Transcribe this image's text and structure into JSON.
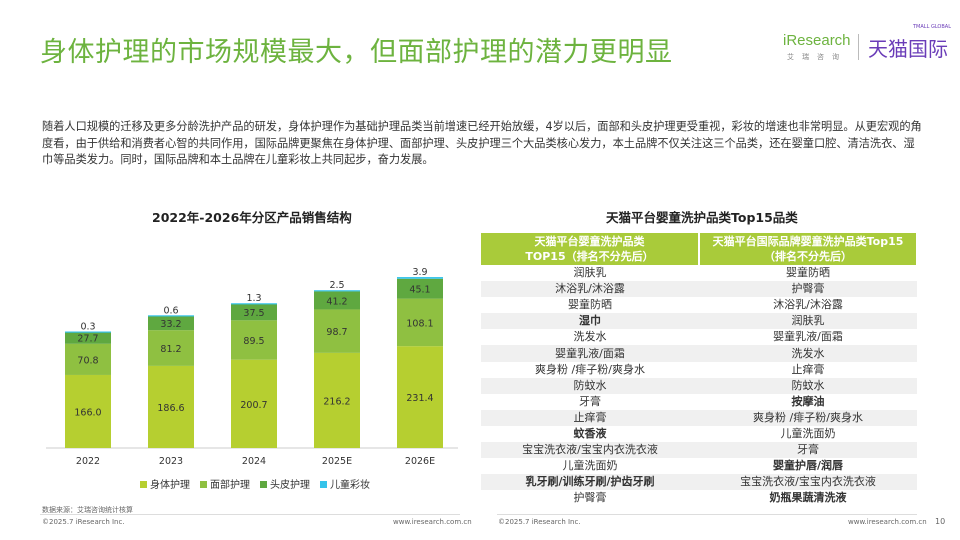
{
  "title": "身体护理的市场规模最大，但面部护理的潜力更明显",
  "logo": {
    "iresearch": "iResearch",
    "iresearch_cn": "艾瑞咨询",
    "tmall": "天猫国际",
    "tmall_en": "TMALL GLOBAL"
  },
  "paragraph": "随着人口规模的迁移及更多分龄洗护产品的研发，身体护理作为基础护理品类当前增速已经开始放缓，4岁以后，面部和头皮护理更受重视，彩妆的增速也非常明显。从更宏观的角度看，由于供给和消费者心智的共同作用，国际品牌更聚焦在身体护理、面部护理、头皮护理三个大品类核心发力，本土品牌不仅关注这三个品类，还在婴童口腔、清洁洗衣、湿巾等品类发力。同时，国际品牌和本土品牌在儿童彩妆上共同起步，奋力发展。",
  "chart_data": {
    "type": "bar",
    "stacked": true,
    "title": "2022年-2026年分区产品销售结构",
    "categories": [
      "2022",
      "2023",
      "2024",
      "2025E",
      "2026E"
    ],
    "series": [
      {
        "name": "身体护理",
        "color": "#b6cf30",
        "values": [
          166.0,
          186.6,
          200.7,
          216.2,
          231.4
        ]
      },
      {
        "name": "面部护理",
        "color": "#8fc041",
        "values": [
          70.8,
          81.2,
          89.5,
          98.7,
          108.1
        ]
      },
      {
        "name": "头皮护理",
        "color": "#5fa840",
        "values": [
          27.7,
          33.2,
          37.5,
          41.2,
          45.1
        ]
      },
      {
        "name": "儿童彩妆",
        "color": "#35c3ea",
        "values": [
          0.3,
          0.6,
          1.3,
          2.5,
          3.9
        ]
      }
    ],
    "legend": "bottom",
    "grid": false
  },
  "source": "数据来源：艾瑞咨询统计核算",
  "table": {
    "title": "天猫平台婴童洗护品类Top15品类",
    "headers": [
      [
        "天猫平台婴童洗护品类",
        "TOP15（排名不分先后）"
      ],
      [
        "天猫平台国际品牌婴童洗护品类Top15",
        "（排名不分先后）"
      ]
    ],
    "rows": [
      [
        {
          "t": "润肤乳"
        },
        {
          "t": "婴童防晒"
        }
      ],
      [
        {
          "t": "沐浴乳/沐浴露"
        },
        {
          "t": "护臀膏"
        }
      ],
      [
        {
          "t": "婴童防晒"
        },
        {
          "t": "沐浴乳/沐浴露"
        }
      ],
      [
        {
          "t": "湿巾",
          "bold": true
        },
        {
          "t": "润肤乳"
        }
      ],
      [
        {
          "t": "洗发水"
        },
        {
          "t": "婴童乳液/面霜"
        }
      ],
      [
        {
          "t": "婴童乳液/面霜"
        },
        {
          "t": "洗发水"
        }
      ],
      [
        {
          "t": "爽身粉 /痱子粉/爽身水"
        },
        {
          "t": "止痒膏"
        }
      ],
      [
        {
          "t": "防蚊水"
        },
        {
          "t": "防蚊水"
        }
      ],
      [
        {
          "t": "牙膏"
        },
        {
          "t": "按摩油",
          "bold": true
        }
      ],
      [
        {
          "t": "止痒膏"
        },
        {
          "t": "爽身粉 /痱子粉/爽身水"
        }
      ],
      [
        {
          "t": "蚊香液",
          "bold": true
        },
        {
          "t": "儿童洗面奶"
        }
      ],
      [
        {
          "t": "宝宝洗衣液/宝宝内衣洗衣液"
        },
        {
          "t": "牙膏"
        }
      ],
      [
        {
          "t": "儿童洗面奶"
        },
        {
          "t": "婴童护唇/润唇",
          "bold": true
        }
      ],
      [
        {
          "t": "乳牙刷/训练牙刷/护齿牙刷",
          "bold": true
        },
        {
          "t": "宝宝洗衣液/宝宝内衣洗衣液"
        }
      ],
      [
        {
          "t": "护臀膏"
        },
        {
          "t": "奶瓶果蔬清洗液",
          "bold": true
        }
      ]
    ]
  },
  "footer": {
    "copyright": "©2025.7 iResearch Inc.",
    "url": "www.iresearch.com.cn",
    "page": "10"
  }
}
